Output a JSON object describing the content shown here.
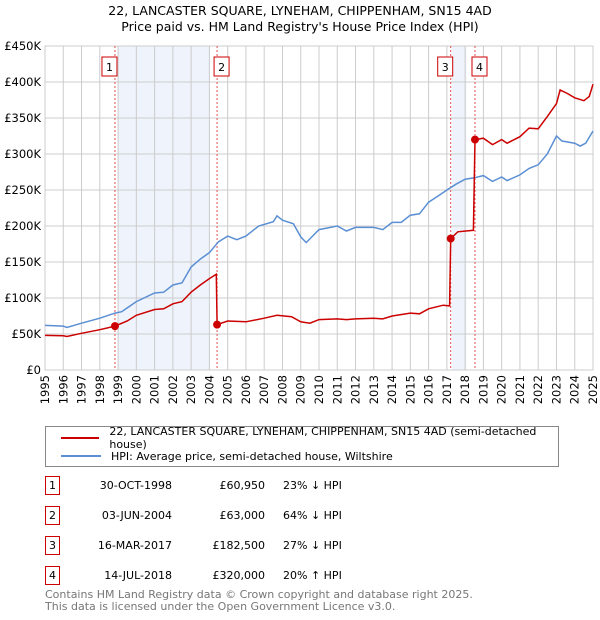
{
  "chart_data": {
    "type": "line",
    "title": "22, LANCASTER SQUARE, LYNEHAM, CHIPPENHAM, SN15 4AD",
    "subtitle": "Price paid vs. HM Land Registry's House Price Index (HPI)",
    "xlabel": "",
    "ylabel": "",
    "xlim": [
      1995,
      2025
    ],
    "ylim": [
      0,
      450000
    ],
    "grid": true,
    "y_ticks": [
      {
        "v": 0,
        "label": "£0"
      },
      {
        "v": 50000,
        "label": "£50K"
      },
      {
        "v": 100000,
        "label": "£100K"
      },
      {
        "v": 150000,
        "label": "£150K"
      },
      {
        "v": 200000,
        "label": "£200K"
      },
      {
        "v": 250000,
        "label": "£250K"
      },
      {
        "v": 300000,
        "label": "£300K"
      },
      {
        "v": 350000,
        "label": "£350K"
      },
      {
        "v": 400000,
        "label": "£400K"
      },
      {
        "v": 450000,
        "label": "£450K"
      }
    ],
    "x_ticks": [
      "1995",
      "1996",
      "1997",
      "1998",
      "1999",
      "2000",
      "2001",
      "2002",
      "2003",
      "2004",
      "2005",
      "2006",
      "2007",
      "2008",
      "2009",
      "2010",
      "2011",
      "2012",
      "2013",
      "2014",
      "2015",
      "2016",
      "2017",
      "2018",
      "2019",
      "2020",
      "2021",
      "2022",
      "2023",
      "2024",
      "2025"
    ],
    "shaded_ranges": [
      [
        1998.99,
        2004.03
      ],
      [
        2017.27,
        2018.07
      ]
    ],
    "series": [
      {
        "name": "22, LANCASTER SQUARE, LYNEHAM, CHIPPENHAM, SN15 4AD (semi-detached house)",
        "color": "#cc0000",
        "points": [
          [
            1995,
            48000
          ],
          [
            1996,
            47500
          ],
          [
            1996.2,
            46500
          ],
          [
            1997,
            51000
          ],
          [
            1998,
            56000
          ],
          [
            1998.83,
            60950
          ],
          [
            1999.5,
            68000
          ],
          [
            2000,
            76000
          ],
          [
            2001,
            84000
          ],
          [
            2001.5,
            85000
          ],
          [
            2002,
            92000
          ],
          [
            2002.5,
            95000
          ],
          [
            2003,
            108000
          ],
          [
            2003.5,
            118000
          ],
          [
            2004,
            127000
          ],
          [
            2004.38,
            133000
          ],
          [
            2004.42,
            63000
          ],
          [
            2005,
            68000
          ],
          [
            2006,
            67000
          ],
          [
            2007,
            72000
          ],
          [
            2007.7,
            76000
          ],
          [
            2008.5,
            74000
          ],
          [
            2009,
            67000
          ],
          [
            2009.5,
            65000
          ],
          [
            2010,
            70000
          ],
          [
            2011,
            71000
          ],
          [
            2011.5,
            70000
          ],
          [
            2012,
            71000
          ],
          [
            2013,
            72000
          ],
          [
            2013.5,
            71000
          ],
          [
            2014,
            75000
          ],
          [
            2015,
            79000
          ],
          [
            2015.5,
            78000
          ],
          [
            2016,
            85000
          ],
          [
            2016.8,
            90000
          ],
          [
            2017.15,
            89000
          ],
          [
            2017.21,
            182500
          ],
          [
            2017.6,
            192000
          ],
          [
            2018.45,
            194000
          ],
          [
            2018.54,
            320000
          ],
          [
            2019,
            322000
          ],
          [
            2019.5,
            313000
          ],
          [
            2020,
            320000
          ],
          [
            2020.3,
            315000
          ],
          [
            2021,
            324000
          ],
          [
            2021.5,
            336000
          ],
          [
            2022,
            335000
          ],
          [
            2022.5,
            352000
          ],
          [
            2023,
            370000
          ],
          [
            2023.2,
            389000
          ],
          [
            2023.6,
            384000
          ],
          [
            2024,
            378000
          ],
          [
            2024.5,
            374000
          ],
          [
            2024.8,
            380000
          ],
          [
            2025,
            397000
          ]
        ]
      },
      {
        "name": "HPI: Average price, semi-detached house, Wiltshire",
        "color": "#5b8fd4",
        "points": [
          [
            1995,
            62000
          ],
          [
            1996,
            61000
          ],
          [
            1996.2,
            59000
          ],
          [
            1997,
            65000
          ],
          [
            1998,
            72000
          ],
          [
            1998.83,
            79000
          ],
          [
            1999.2,
            81000
          ],
          [
            2000,
            95000
          ],
          [
            2001,
            107000
          ],
          [
            2001.5,
            108000
          ],
          [
            2002,
            118000
          ],
          [
            2002.5,
            121000
          ],
          [
            2003,
            143000
          ],
          [
            2003.5,
            154000
          ],
          [
            2004,
            163000
          ],
          [
            2004.5,
            178000
          ],
          [
            2005,
            186000
          ],
          [
            2005.5,
            181000
          ],
          [
            2006,
            186000
          ],
          [
            2006.7,
            200000
          ],
          [
            2007.5,
            206000
          ],
          [
            2007.7,
            214000
          ],
          [
            2008,
            208000
          ],
          [
            2008.6,
            203000
          ],
          [
            2009,
            185000
          ],
          [
            2009.3,
            177000
          ],
          [
            2010,
            195000
          ],
          [
            2011,
            200000
          ],
          [
            2011.5,
            193000
          ],
          [
            2012,
            198000
          ],
          [
            2013,
            198000
          ],
          [
            2013.5,
            195000
          ],
          [
            2014,
            205000
          ],
          [
            2014.5,
            205000
          ],
          [
            2015,
            215000
          ],
          [
            2015.5,
            217000
          ],
          [
            2016,
            233000
          ],
          [
            2016.6,
            243000
          ],
          [
            2017,
            250000
          ],
          [
            2017.5,
            258000
          ],
          [
            2018,
            265000
          ],
          [
            2018.5,
            267000
          ],
          [
            2019,
            270000
          ],
          [
            2019.5,
            262000
          ],
          [
            2020,
            268000
          ],
          [
            2020.3,
            263000
          ],
          [
            2021,
            271000
          ],
          [
            2021.5,
            280000
          ],
          [
            2022,
            285000
          ],
          [
            2022.5,
            300000
          ],
          [
            2023,
            325000
          ],
          [
            2023.3,
            318000
          ],
          [
            2024,
            315000
          ],
          [
            2024.3,
            311000
          ],
          [
            2024.6,
            315000
          ],
          [
            2025,
            332000
          ]
        ]
      }
    ],
    "sales": [
      {
        "id": "1",
        "x": 1998.83,
        "y": 60950
      },
      {
        "id": "2",
        "x": 2004.42,
        "y": 63000
      },
      {
        "id": "3",
        "x": 2017.21,
        "y": 182500
      },
      {
        "id": "4",
        "x": 2018.54,
        "y": 320000
      }
    ],
    "legend_position": "bottom"
  },
  "legend": {
    "property": "22, LANCASTER SQUARE, LYNEHAM, CHIPPENHAM, SN15 4AD (semi-detached house)",
    "hpi": "HPI: Average price, semi-detached house, Wiltshire"
  },
  "transactions": [
    {
      "num": "1",
      "date": "30-OCT-1998",
      "price": "£60,950",
      "hpi": "23% ↓ HPI"
    },
    {
      "num": "2",
      "date": "03-JUN-2004",
      "price": "£63,000",
      "hpi": "64% ↓ HPI"
    },
    {
      "num": "3",
      "date": "16-MAR-2017",
      "price": "£182,500",
      "hpi": "27% ↓ HPI"
    },
    {
      "num": "4",
      "date": "14-JUL-2018",
      "price": "£320,000",
      "hpi": "20% ↑ HPI"
    }
  ],
  "footer": {
    "line1": "Contains HM Land Registry data © Crown copyright and database right 2025.",
    "line2": "This data is licensed under the Open Government Licence v3.0."
  }
}
